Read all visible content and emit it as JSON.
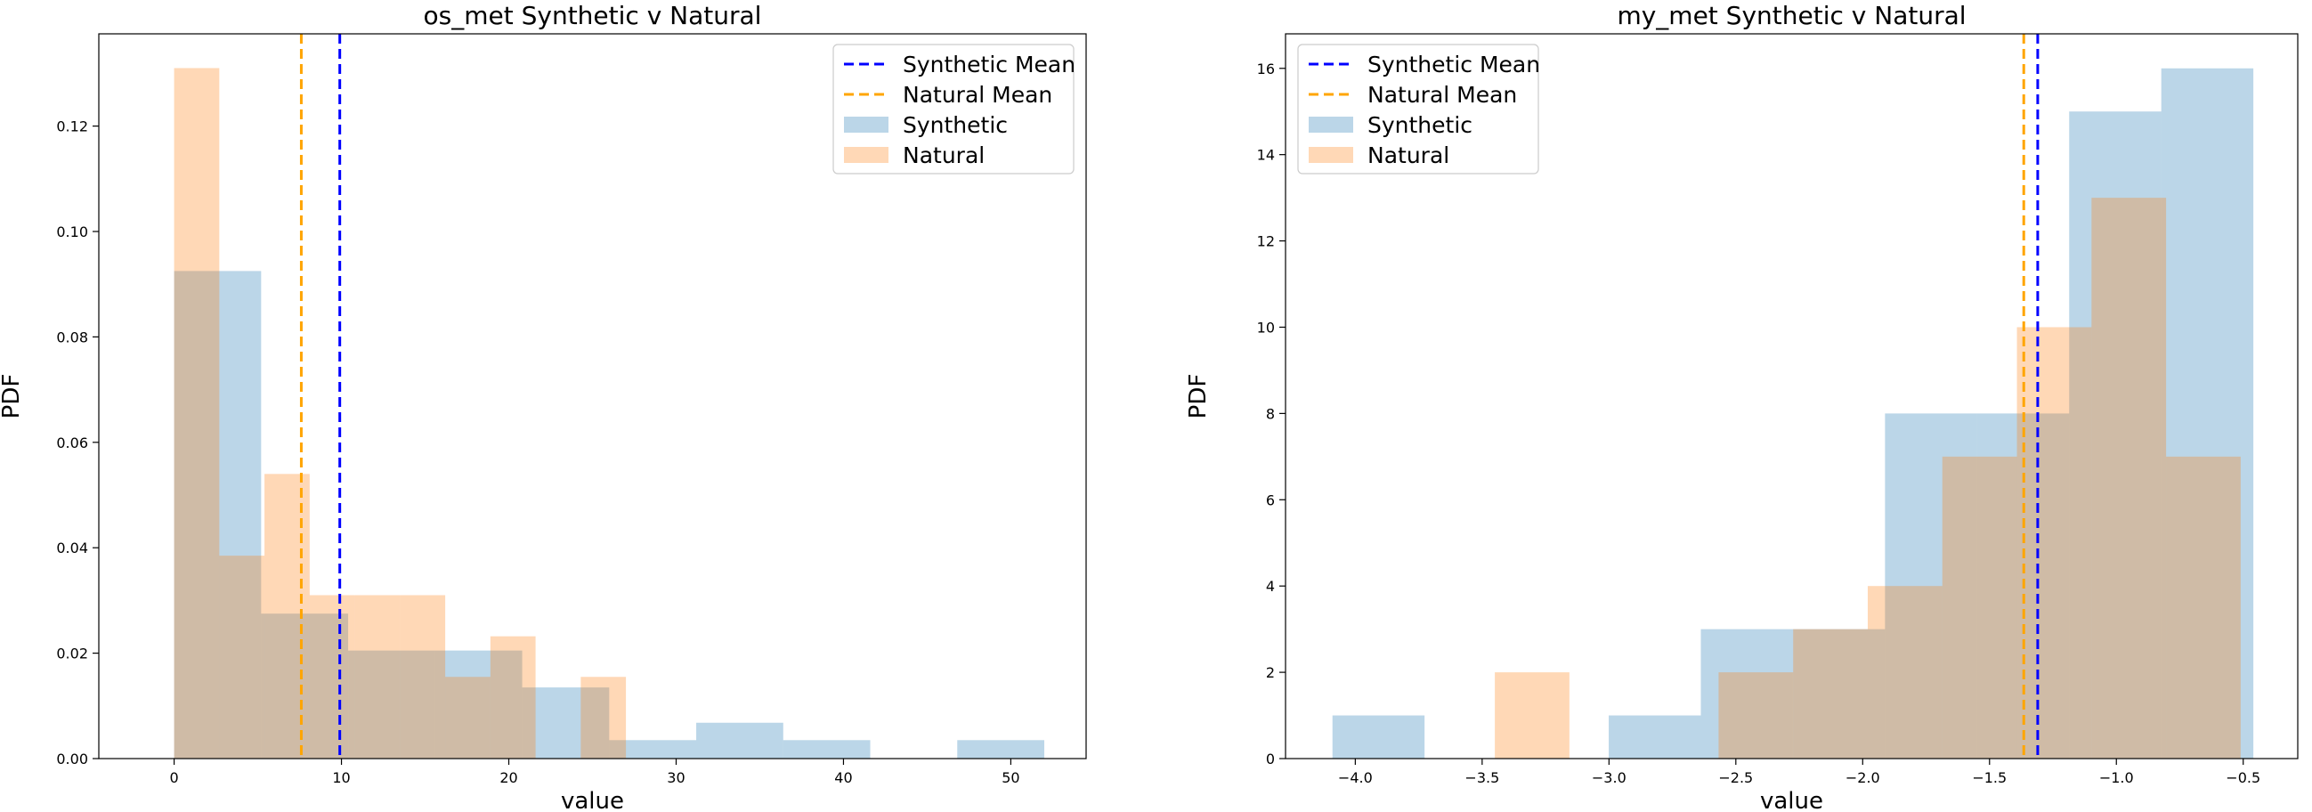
{
  "chart_data": [
    {
      "type": "histogram",
      "title": "os_met Synthetic v Natural",
      "xlabel": "value",
      "ylabel": "PDF",
      "xlim": [
        -4.5,
        54.5
      ],
      "ylim": [
        0,
        0.1375
      ],
      "xticks": [
        0,
        10,
        20,
        30,
        40,
        50
      ],
      "xtick_labels": [
        "0",
        "10",
        "20",
        "30",
        "40",
        "50"
      ],
      "yticks": [
        0,
        0.02,
        0.04,
        0.06,
        0.08,
        0.1,
        0.12
      ],
      "ytick_labels": [
        "0.00",
        "0.02",
        "0.04",
        "0.06",
        "0.08",
        "0.10",
        "0.12"
      ],
      "legend_position": "top-right",
      "legend": [
        {
          "label": "Synthetic Mean",
          "kind": "dashed-line",
          "color": "#0000ff"
        },
        {
          "label": "Natural Mean",
          "kind": "dashed-line",
          "color": "#ffa500"
        },
        {
          "label": "Synthetic",
          "kind": "patch",
          "color": "#1f77b4"
        },
        {
          "label": "Natural",
          "kind": "patch",
          "color": "#ff7f0e"
        }
      ],
      "series": [
        {
          "name": "Synthetic",
          "color": "#1f77b4",
          "opacity": 0.3,
          "bin_edges": [
            0,
            5.2,
            10.4,
            15.6,
            20.8,
            26.0,
            31.2,
            36.4,
            41.6,
            46.8,
            52.0
          ],
          "values": [
            0.0925,
            0.0275,
            0.0205,
            0.0205,
            0.0135,
            0.0035,
            0.0068,
            0.0035,
            0.0,
            0.0035
          ]
        },
        {
          "name": "Natural",
          "color": "#ff7f0e",
          "opacity": 0.3,
          "bin_edges": [
            0,
            2.7,
            5.4,
            8.1,
            10.8,
            13.5,
            16.2,
            18.9,
            21.6,
            24.3,
            27.0
          ],
          "values": [
            0.131,
            0.0385,
            0.054,
            0.031,
            0.031,
            0.031,
            0.0155,
            0.0232,
            0.0,
            0.0155
          ]
        }
      ],
      "mean_lines": [
        {
          "name": "Synthetic Mean",
          "value": 9.9,
          "color": "#0000ff"
        },
        {
          "name": "Natural Mean",
          "value": 7.6,
          "color": "#ffa500"
        }
      ]
    },
    {
      "type": "histogram",
      "title": "my_met Synthetic v Natural",
      "xlabel": "value",
      "ylabel": "PDF",
      "xlim": [
        -4.275,
        -0.285
      ],
      "ylim": [
        0,
        16.8
      ],
      "xticks": [
        -4.0,
        -3.5,
        -3.0,
        -2.5,
        -2.0,
        -1.5,
        -1.0,
        -0.5
      ],
      "xtick_labels": [
        "−4.0",
        "−3.5",
        "−3.0",
        "−2.5",
        "−2.0",
        "−1.5",
        "−1.0",
        "−0.5"
      ],
      "yticks": [
        0,
        2,
        4,
        6,
        8,
        10,
        12,
        14,
        16
      ],
      "ytick_labels": [
        "0",
        "2",
        "4",
        "6",
        "8",
        "10",
        "12",
        "14",
        "16"
      ],
      "legend_position": "top-left",
      "legend": [
        {
          "label": "Synthetic Mean",
          "kind": "dashed-line",
          "color": "#0000ff"
        },
        {
          "label": "Natural Mean",
          "kind": "dashed-line",
          "color": "#ffa500"
        },
        {
          "label": "Synthetic",
          "kind": "patch",
          "color": "#1f77b4"
        },
        {
          "label": "Natural",
          "kind": "patch",
          "color": "#ff7f0e"
        }
      ],
      "series": [
        {
          "name": "Synthetic",
          "color": "#1f77b4",
          "opacity": 0.3,
          "bin_edges": [
            -4.09,
            -3.727,
            -3.364,
            -3.001,
            -2.638,
            -2.275,
            -1.912,
            -1.549,
            -1.186,
            -0.823,
            -0.46
          ],
          "values": [
            1,
            0,
            0,
            1,
            3,
            3,
            8,
            8,
            15,
            16
          ]
        },
        {
          "name": "Natural",
          "color": "#ff7f0e",
          "opacity": 0.3,
          "bin_edges": [
            -3.45,
            -3.156,
            -2.862,
            -2.568,
            -2.274,
            -1.98,
            -1.686,
            -1.392,
            -1.098,
            -0.804,
            -0.51
          ],
          "values": [
            2,
            0,
            0,
            2,
            3,
            4,
            7,
            10,
            13,
            7
          ]
        }
      ],
      "mean_lines": [
        {
          "name": "Synthetic Mean",
          "value": -1.31,
          "color": "#0000ff"
        },
        {
          "name": "Natural Mean",
          "value": -1.365,
          "color": "#ffa500"
        }
      ]
    }
  ]
}
